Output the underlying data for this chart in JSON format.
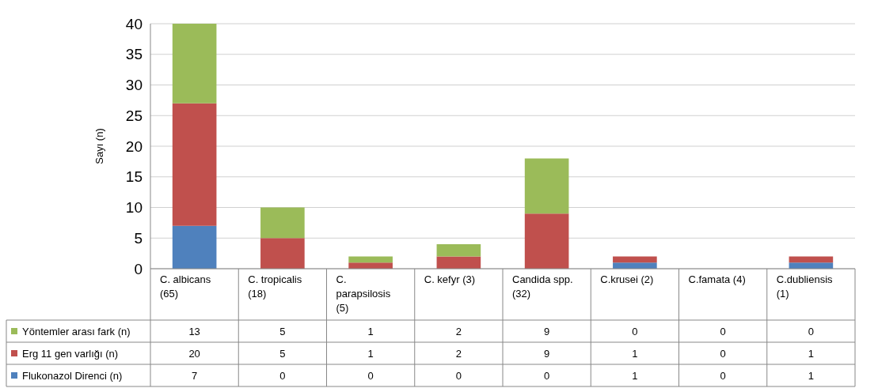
{
  "chart_data": {
    "type": "bar",
    "stacked": true,
    "ylabel": "Sayı (n)",
    "categories": [
      "C. albicans (65)",
      "C. tropicalis (18)",
      "C. parapsilosis (5)",
      "C. kefyr (3)",
      "Candida spp. (32)",
      "C.krusei (2)",
      "C.famata (4)",
      "C.dubliensis (1)"
    ],
    "series": [
      {
        "name": "Flukonazol Direnci (n)",
        "color": "#4f81bd",
        "values": [
          7,
          0,
          0,
          0,
          0,
          1,
          0,
          1
        ]
      },
      {
        "name": "Erg 11 gen varlığı (n)",
        "color": "#c0504d",
        "values": [
          20,
          5,
          1,
          2,
          9,
          1,
          0,
          1
        ]
      },
      {
        "name": "Yöntemler arası fark (n)",
        "color": "#9bbb59",
        "values": [
          13,
          5,
          1,
          2,
          9,
          0,
          0,
          0
        ]
      }
    ],
    "ylim": [
      0,
      40
    ],
    "yticks": [
      0,
      5,
      10,
      15,
      20,
      25,
      30,
      35,
      40
    ],
    "grid": "y",
    "legend": "bottom",
    "data_labels": true
  }
}
